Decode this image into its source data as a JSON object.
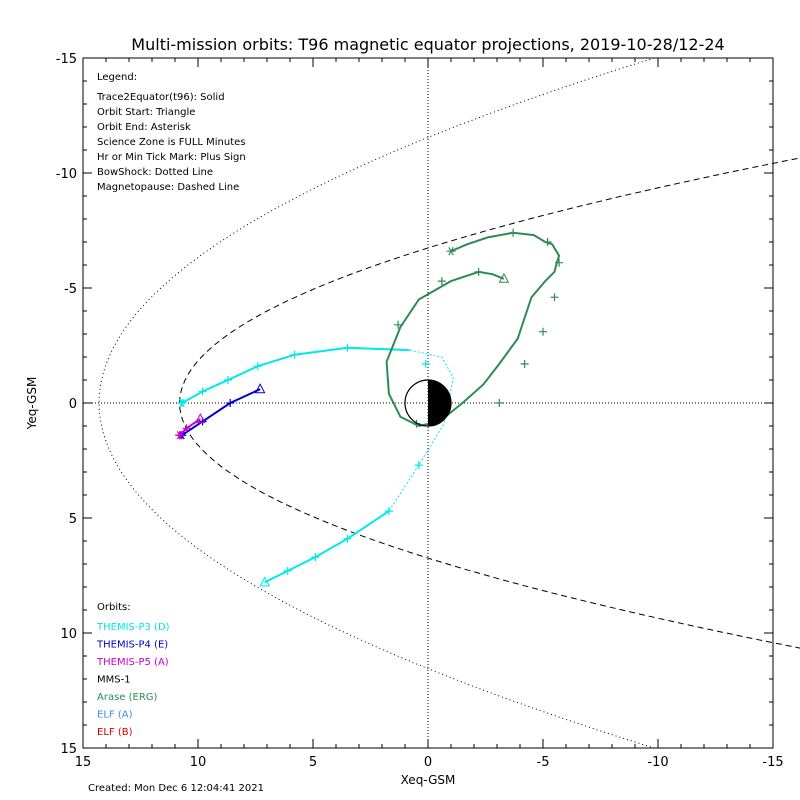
{
  "chart_data": {
    "type": "line",
    "title": "Multi-mission orbits: T96 magnetic equator projections, 2019-10-28/12-24",
    "xlabel": "Xeq-GSM",
    "ylabel": "Yeq-GSM",
    "xlim": [
      15,
      -15
    ],
    "ylim": [
      15,
      -15
    ],
    "x_ticks": [
      15,
      10,
      5,
      0,
      -5,
      -10,
      -15
    ],
    "y_ticks": [
      -15,
      -10,
      -5,
      0,
      5,
      10,
      15
    ],
    "x_tick_labels": [
      "15",
      "10",
      "5",
      "0",
      "-5",
      "-10",
      "-15"
    ],
    "y_tick_labels": [
      "-15",
      "-10",
      "-5",
      "0",
      "5",
      "10",
      "15"
    ],
    "legend_title": "Legend:",
    "legend_lines": [
      "Trace2Equator(t96): Solid",
      "Orbit Start: Triangle",
      "Orbit End: Asterisk",
      "Science Zone is FULL Minutes",
      "Hr or Min Tick Mark: Plus Sign",
      "BowShock: Dotted Line",
      "Magnetopause: Dashed Line"
    ],
    "orbits_title": "Orbits:",
    "orbit_labels": [
      {
        "name": "THEMIS-P3 (D)",
        "color": "#00e8e8"
      },
      {
        "name": "THEMIS-P4 (E)",
        "color": "#0000cc"
      },
      {
        "name": "THEMIS-P5 (A)",
        "color": "#cc00cc"
      },
      {
        "name": "MMS-1",
        "color": "#000000"
      },
      {
        "name": "Arase (ERG)",
        "color": "#2e8b57"
      },
      {
        "name": "ELF (A)",
        "color": "#3a8ee6"
      },
      {
        "name": "ELF (B)",
        "color": "#cc0000"
      }
    ],
    "created": "Created: Mon Dec  6 12:04:41 2021",
    "bow_shock": {
      "subsolar_x": 14.3,
      "flare": 0.0075
    },
    "magnetopause": {
      "subsolar_x": 10.8,
      "flare": 0.022
    },
    "series": [
      {
        "name": "THEMIS-P3 (D)",
        "color": "#00e8e8",
        "x": [
          7.1,
          6.1,
          4.9,
          3.5,
          1.7,
          0.4,
          -0.7,
          -1.1,
          -0.6,
          0.8,
          3.5,
          5.8,
          7.4,
          8.7,
          9.8,
          10.7
        ],
        "y": [
          7.8,
          7.3,
          6.7,
          5.9,
          4.7,
          2.7,
          0.9,
          -1.1,
          -2.0,
          -2.3,
          -2.4,
          -2.1,
          -1.6,
          -1.0,
          -0.5,
          0.0
        ],
        "plus_marks": [
          [
            6.1,
            7.3
          ],
          [
            4.9,
            6.7
          ],
          [
            3.5,
            5.9
          ],
          [
            1.7,
            4.7
          ],
          [
            0.4,
            2.7
          ],
          [
            0.1,
            -1.7
          ],
          [
            3.5,
            -2.4
          ],
          [
            5.8,
            -2.1
          ],
          [
            7.4,
            -1.6
          ],
          [
            8.7,
            -1.0
          ],
          [
            9.8,
            -0.5
          ],
          [
            10.7,
            0.0
          ]
        ],
        "science_zone_from": 4,
        "science_zone_to": 9
      },
      {
        "name": "THEMIS-P4 (E)",
        "color": "#0000cc",
        "x": [
          7.3,
          8.6,
          9.8,
          10.7
        ],
        "y": [
          -0.6,
          0.0,
          0.8,
          1.4
        ],
        "plus_marks": [
          [
            8.6,
            0.0
          ],
          [
            9.8,
            0.8
          ],
          [
            10.7,
            1.4
          ]
        ]
      },
      {
        "name": "THEMIS-P5 (A)",
        "color": "#cc00cc",
        "x": [
          9.9,
          10.5,
          10.8
        ],
        "y": [
          0.7,
          1.1,
          1.4
        ],
        "plus_marks": [
          [
            10.5,
            1.1
          ],
          [
            10.8,
            1.4
          ]
        ]
      },
      {
        "name": "Arase (ERG)",
        "color": "#2e8b57",
        "x": [
          -3.3,
          -2.8,
          -2.2,
          -1.0,
          0.4,
          1.2,
          1.8,
          1.7,
          1.2,
          0.4,
          -0.5,
          -1.5,
          -2.4,
          -3.1,
          -3.9,
          -4.5,
          -5.1,
          -5.5,
          -5.6,
          -5.7,
          -5.4,
          -5.1,
          -4.6,
          -3.7,
          -2.6,
          -1.7,
          -1.0
        ],
        "y": [
          -5.4,
          -5.6,
          -5.7,
          -5.3,
          -4.5,
          -3.3,
          -1.8,
          -0.4,
          0.6,
          1.0,
          0.8,
          0.0,
          -0.8,
          -1.7,
          -2.8,
          -4.6,
          -5.3,
          -5.7,
          -6.1,
          -6.4,
          -6.9,
          -7.0,
          -7.3,
          -7.4,
          -7.2,
          -6.9,
          -6.6
        ],
        "plus_marks": [
          [
            -2.2,
            -5.7
          ],
          [
            -0.6,
            -5.3
          ],
          [
            1.3,
            -3.4
          ],
          [
            0.5,
            0.9
          ],
          [
            -3.1,
            0.0
          ],
          [
            -4.2,
            -1.7
          ],
          [
            -5.0,
            -3.1
          ],
          [
            -5.5,
            -4.6
          ],
          [
            -5.7,
            -6.1
          ],
          [
            -5.2,
            -7.0
          ],
          [
            -3.7,
            -7.4
          ]
        ]
      }
    ]
  }
}
